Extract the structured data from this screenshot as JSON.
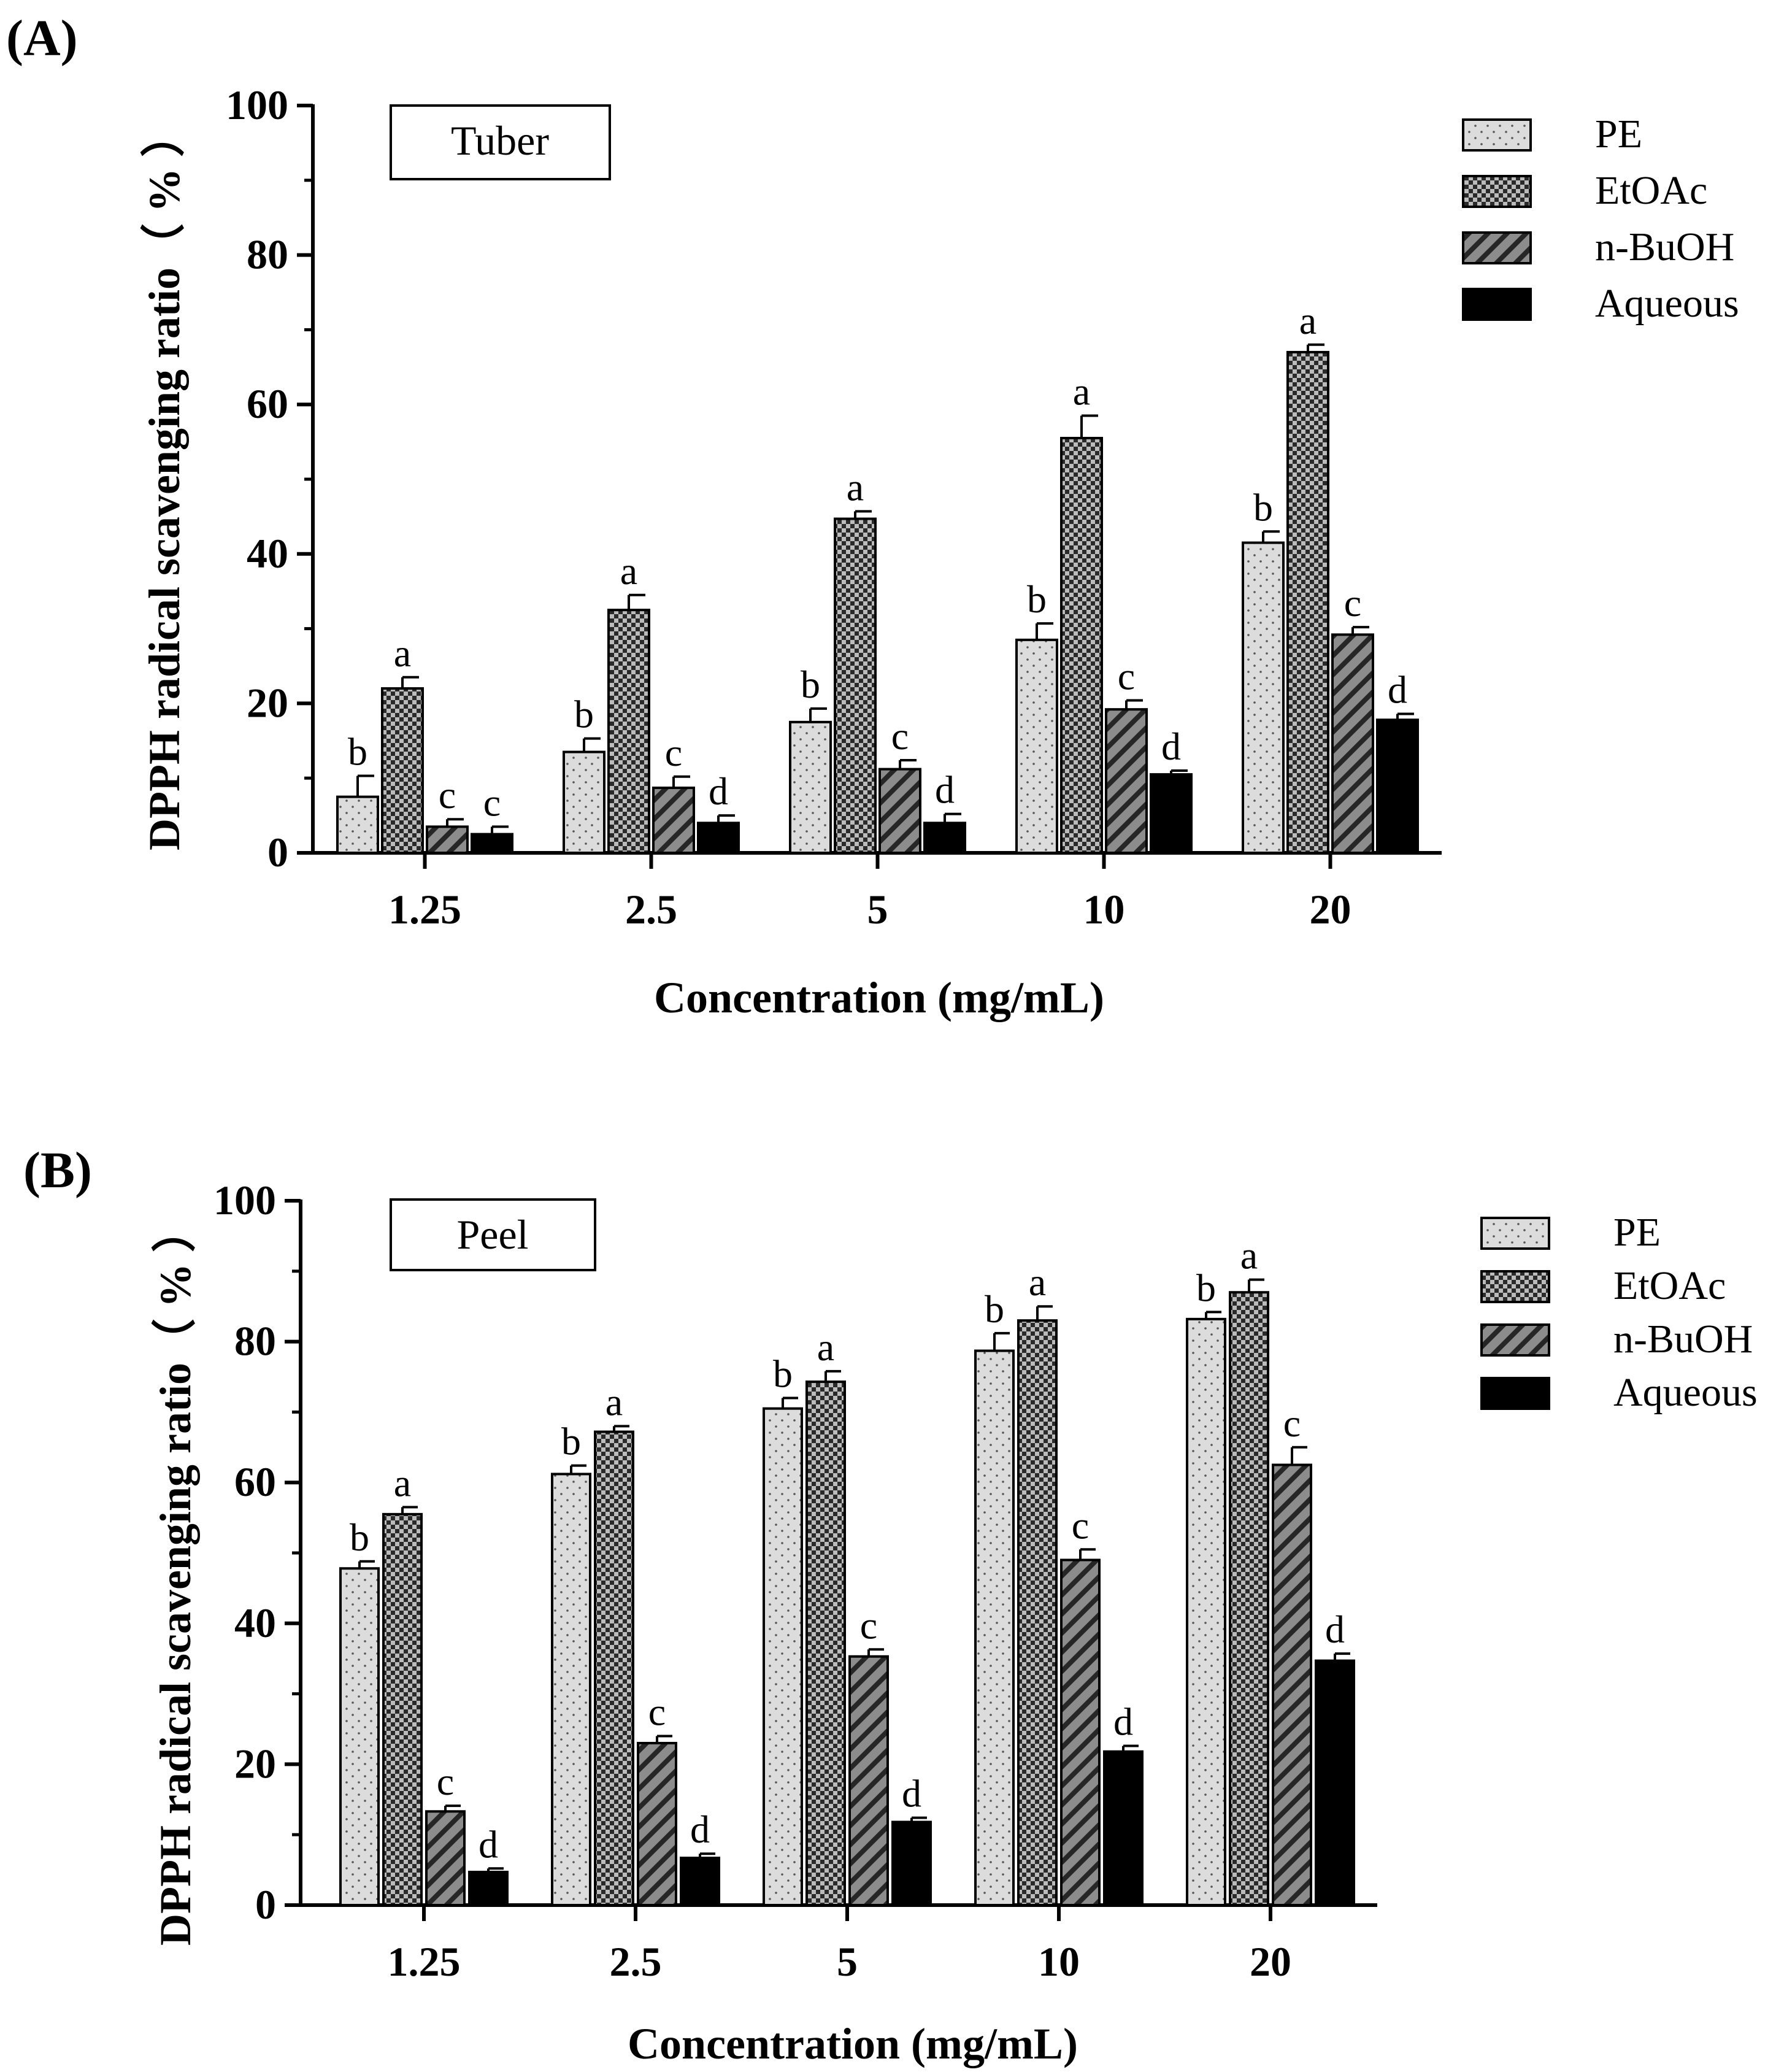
{
  "chart_data": [
    {
      "type": "bar",
      "panel_label": "(A)",
      "box_label": "Tuber",
      "xlabel": "Concentration (mg/mL)",
      "ylabel": "DPPH radical scavenging ratio（ % ）",
      "categories": [
        "1.25",
        "2.5",
        "5",
        "10",
        "20"
      ],
      "ylim": [
        0,
        100
      ],
      "yticks": [
        "0",
        "20",
        "40",
        "60",
        "80",
        "100"
      ],
      "legend_position": "top-right",
      "series": [
        {
          "name": "PE",
          "values": [
            7.5,
            13.5,
            17.5,
            28.5,
            41.5
          ],
          "errors": [
            2.8,
            1.8,
            1.8,
            2.2,
            1.5
          ],
          "letters": [
            "b",
            "b",
            "b",
            "b",
            "b"
          ]
        },
        {
          "name": "EtOAc",
          "values": [
            22.0,
            32.5,
            44.7,
            55.5,
            67.0
          ],
          "errors": [
            1.5,
            2.0,
            1.0,
            3.0,
            1.0
          ],
          "letters": [
            "a",
            "a",
            "a",
            "a",
            "a"
          ]
        },
        {
          "name": "n-BuOH",
          "values": [
            3.5,
            8.7,
            11.2,
            19.2,
            29.2
          ],
          "errors": [
            1.0,
            1.5,
            1.2,
            1.2,
            1.0
          ],
          "letters": [
            "c",
            "c",
            "c",
            "c",
            "c"
          ]
        },
        {
          "name": "Aqueous",
          "values": [
            2.5,
            4.0,
            4.0,
            10.5,
            17.8
          ],
          "errors": [
            1.0,
            1.0,
            1.2,
            0.5,
            0.8
          ],
          "letters": [
            "c",
            "d",
            "d",
            "d",
            "d"
          ]
        }
      ]
    },
    {
      "type": "bar",
      "panel_label": "(B)",
      "box_label": "Peel",
      "xlabel": "Concentration (mg/mL)",
      "ylabel": "DPPH radical scavenging ratio（ % ）",
      "categories": [
        "1.25",
        "2.5",
        "5",
        "10",
        "20"
      ],
      "ylim": [
        0,
        100
      ],
      "yticks": [
        "0",
        "20",
        "40",
        "60",
        "80",
        "100"
      ],
      "legend_position": "top-right",
      "series": [
        {
          "name": "PE",
          "values": [
            47.8,
            61.2,
            70.5,
            78.7,
            83.2
          ],
          "errors": [
            1.0,
            1.2,
            1.5,
            2.5,
            1.0
          ],
          "letters": [
            "b",
            "b",
            "b",
            "b",
            "b"
          ]
        },
        {
          "name": "EtOAc",
          "values": [
            55.5,
            67.2,
            74.3,
            83.0,
            87.0
          ],
          "errors": [
            1.0,
            0.8,
            1.5,
            2.0,
            1.8
          ],
          "letters": [
            "a",
            "a",
            "a",
            "a",
            "a"
          ]
        },
        {
          "name": "n-BuOH",
          "values": [
            13.3,
            23.0,
            35.3,
            49.0,
            62.5
          ],
          "errors": [
            0.8,
            1.0,
            1.0,
            1.5,
            2.5
          ],
          "letters": [
            "c",
            "c",
            "c",
            "c",
            "c"
          ]
        },
        {
          "name": "Aqueous",
          "values": [
            4.7,
            6.7,
            11.8,
            21.8,
            34.7
          ],
          "errors": [
            0.5,
            0.6,
            0.6,
            0.8,
            1.0
          ],
          "letters": [
            "d",
            "d",
            "d",
            "d",
            "d"
          ]
        }
      ]
    }
  ]
}
